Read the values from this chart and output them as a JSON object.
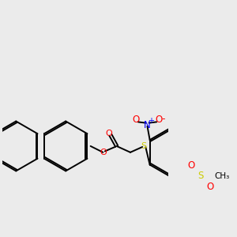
{
  "bg_color": "#ebebeb",
  "bond_color": "#000000",
  "o_color": "#ff0000",
  "s_color": "#cccc00",
  "n_color": "#0000ff",
  "lw": 1.4,
  "dbo": 0.055,
  "figsize": [
    3.0,
    3.0
  ],
  "dpi": 100,
  "xlim": [
    -0.5,
    5.5
  ],
  "ylim": [
    -1.5,
    3.5
  ]
}
